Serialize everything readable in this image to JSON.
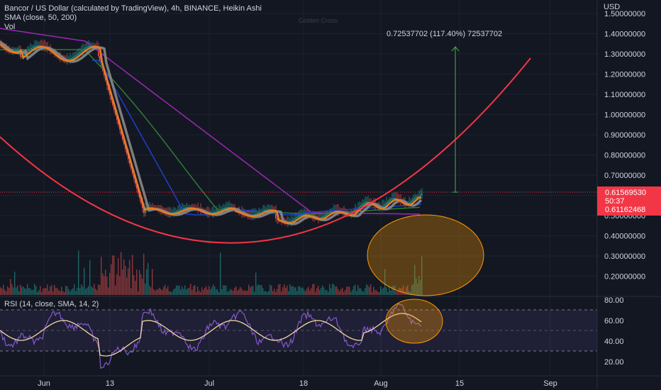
{
  "legend": {
    "title": "Bancor / US Dollar (calculated by TradingView), 4h, BINANCE, Heikin Ashi",
    "sma": "SMA (close, 50, 200)",
    "vol": "Vol"
  },
  "annotations": {
    "golden_cross": "Golden Cross",
    "measure": "0.72537702 (117.40%) 72537702"
  },
  "price_axis": {
    "currency": "USD",
    "ticks": [
      "1.50000000",
      "1.40000000",
      "1.30000000",
      "1.20000000",
      "1.10000000",
      "1.00000000",
      "0.90000000",
      "0.80000000",
      "0.70000000",
      "0.60000000",
      "0.50000000",
      "0.40000000",
      "0.30000000",
      "0.20000000"
    ]
  },
  "price_badge": {
    "price": "0.61569530",
    "countdown": "50:37",
    "sma_value": "0.61162468",
    "color": "#f23645"
  },
  "rsi": {
    "title": "RSI (14, close, SMA, 14, 2)",
    "ticks": [
      "80.00",
      "60.00",
      "40.00",
      "20.00"
    ]
  },
  "time_axis": {
    "ticks": [
      "Jun",
      "13",
      "Jul",
      "18",
      "Aug",
      "15",
      "Sep"
    ]
  },
  "colors": {
    "background": "#131722",
    "up": "#26a69a",
    "down": "#ef5350",
    "sma50": "#1e88e5",
    "sma200": "#9c27b0",
    "sma_green": "#2e7d32",
    "curve": "#f23645",
    "ellipse": "#ff9800",
    "rsi_line": "#7e57c2",
    "rsi_sma": "#f0d9a0",
    "arrow": "#4caf50"
  }
}
